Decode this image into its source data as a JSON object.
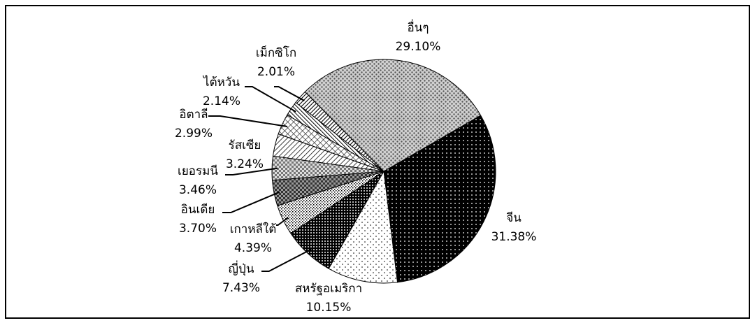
{
  "chart_data": {
    "type": "pie",
    "categories": [
      "จีน",
      "สหรัฐอเมริกา",
      "ญี่ปุ่น",
      "เกาหลีใต้",
      "อินเดีย",
      "เยอรมนี",
      "รัสเซีย",
      "อิตาลี",
      "ไต้หวัน",
      "เม็กซิโก",
      "อื่นๆ"
    ],
    "values": [
      31.38,
      10.15,
      7.43,
      4.39,
      3.7,
      3.46,
      3.24,
      2.99,
      2.14,
      2.01,
      29.1
    ],
    "value_labels": [
      "31.38%",
      "10.15%",
      "7.43%",
      "4.39%",
      "3.70%",
      "3.46%",
      "3.24%",
      "2.99%",
      "2.14%",
      "2.01%",
      "29.10%"
    ]
  }
}
